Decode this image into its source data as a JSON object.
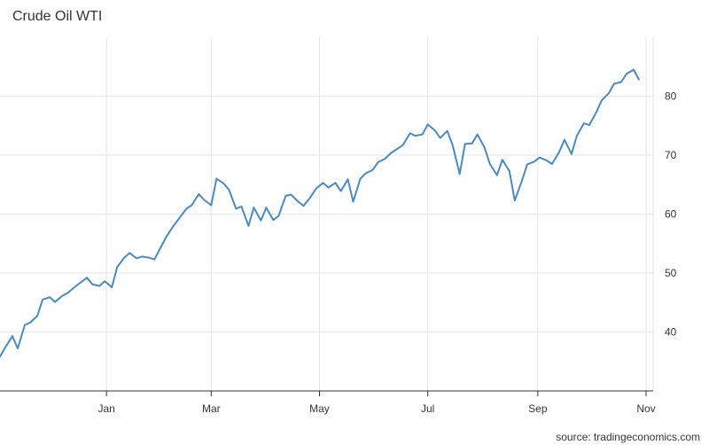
{
  "chart_data": {
    "type": "line",
    "title": "Crude Oil WTI",
    "xlabel": "",
    "ylabel": "",
    "x_axis": {
      "type": "date",
      "tick_labels": [
        "Jan",
        "Mar",
        "May",
        "Jul",
        "Sep",
        "Nov"
      ],
      "range": [
        "2020-11-02",
        "2021-11-05"
      ]
    },
    "y_axis": {
      "position": "right",
      "range": [
        30,
        90
      ],
      "ticks": [
        40,
        50,
        60,
        70,
        80
      ]
    },
    "grid": true,
    "line_color": "#4a8ac4",
    "series": [
      {
        "x": [
          "2020-11-02",
          "2020-11-05",
          "2020-11-09",
          "2020-11-12",
          "2020-11-16",
          "2020-11-19",
          "2020-11-23",
          "2020-11-26",
          "2020-11-30",
          "2020-12-03",
          "2020-12-07",
          "2020-12-10",
          "2020-12-14",
          "2020-12-17",
          "2020-12-21",
          "2020-12-24",
          "2020-12-28",
          "2020-12-31",
          "2021-01-04",
          "2021-01-07",
          "2021-01-11",
          "2021-01-14",
          "2021-01-18",
          "2021-01-21",
          "2021-01-25",
          "2021-01-28",
          "2021-02-01",
          "2021-02-04",
          "2021-02-08",
          "2021-02-11",
          "2021-02-15",
          "2021-02-18",
          "2021-02-22",
          "2021-02-25",
          "2021-03-01",
          "2021-03-04",
          "2021-03-08",
          "2021-03-11",
          "2021-03-15",
          "2021-03-18",
          "2021-03-22",
          "2021-03-25",
          "2021-03-29",
          "2021-04-01",
          "2021-04-05",
          "2021-04-08",
          "2021-04-12",
          "2021-04-15",
          "2021-04-19",
          "2021-04-22",
          "2021-04-26",
          "2021-04-29",
          "2021-05-03",
          "2021-05-06",
          "2021-05-10",
          "2021-05-13",
          "2021-05-17",
          "2021-05-20",
          "2021-05-24",
          "2021-05-27",
          "2021-05-31",
          "2021-06-03",
          "2021-06-07",
          "2021-06-10",
          "2021-06-14",
          "2021-06-17",
          "2021-06-21",
          "2021-06-24",
          "2021-06-28",
          "2021-07-01",
          "2021-07-05",
          "2021-07-08",
          "2021-07-12",
          "2021-07-15",
          "2021-07-19",
          "2021-07-22",
          "2021-07-26",
          "2021-07-29",
          "2021-08-02",
          "2021-08-05",
          "2021-08-09",
          "2021-08-12",
          "2021-08-16",
          "2021-08-19",
          "2021-08-23",
          "2021-08-26",
          "2021-08-30",
          "2021-09-02",
          "2021-09-06",
          "2021-09-09",
          "2021-09-13",
          "2021-09-16",
          "2021-09-20",
          "2021-09-23",
          "2021-09-27",
          "2021-09-30",
          "2021-10-04",
          "2021-10-07",
          "2021-10-11",
          "2021-10-14",
          "2021-10-18",
          "2021-10-21",
          "2021-10-25",
          "2021-10-28"
        ],
        "y": [
          35.8,
          37.4,
          39.3,
          37.2,
          41.2,
          41.6,
          42.7,
          45.5,
          45.9,
          45.1,
          46.1,
          46.6,
          47.6,
          48.3,
          49.2,
          48.1,
          47.8,
          48.6,
          47.6,
          51.0,
          52.6,
          53.4,
          52.5,
          52.8,
          52.6,
          52.3,
          54.6,
          56.3,
          58.1,
          59.3,
          60.9,
          61.5,
          63.4,
          62.4,
          61.5,
          66.0,
          65.2,
          64.1,
          60.9,
          61.3,
          58.0,
          61.1,
          58.9,
          61.1,
          59.0,
          59.7,
          63.1,
          63.3,
          62.1,
          61.4,
          62.9,
          64.3,
          65.3,
          64.5,
          65.3,
          63.9,
          65.9,
          62.1,
          66.0,
          66.9,
          67.5,
          68.8,
          69.4,
          70.3,
          71.1,
          71.7,
          73.7,
          73.3,
          73.5,
          75.2,
          74.2,
          72.9,
          74.1,
          71.7,
          66.8,
          71.9,
          72.0,
          73.5,
          71.3,
          68.5,
          66.6,
          69.2,
          67.3,
          62.3,
          65.6,
          68.4,
          68.9,
          69.6,
          69.1,
          68.5,
          70.5,
          72.6,
          70.2,
          73.3,
          75.4,
          75.1,
          77.3,
          79.3,
          80.5,
          82.1,
          82.4,
          83.8,
          84.5,
          82.8
        ]
      }
    ],
    "source_text": "source: tradingeconomics.com"
  }
}
